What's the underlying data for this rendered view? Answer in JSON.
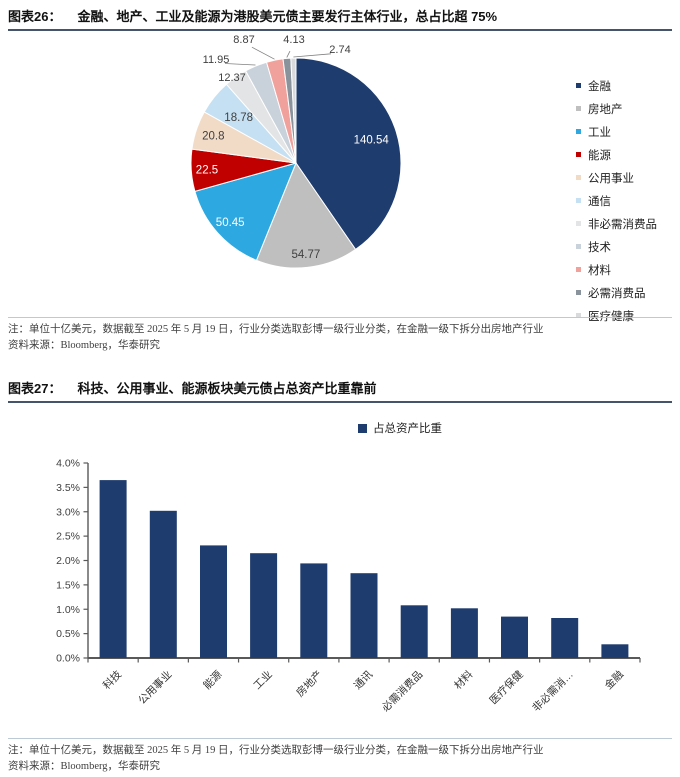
{
  "figure26": {
    "heading_label": "图表26：",
    "heading_title": "金融、地产、工业及能源为港股美元债主要发行主体行业，总占比超 75%",
    "note_line1": "注：单位十亿美元，数据截至 2025 年 5 月 19 日，行业分类选取彭博一级行业分类，在金融一级下拆分出房地产行业",
    "source_line": "资料来源：Bloomberg，华泰研究"
  },
  "figure27": {
    "heading_label": "图表27：",
    "heading_title": "科技、公用事业、能源板块美元债占总资产比重靠前",
    "legend_label": "占总资产比重",
    "note_line1": "注：单位十亿美元，数据截至 2025 年 5 月 19 日，行业分类选取彭博一级行业分类，在金融一级下拆分出房地产行业",
    "source_line": "资料来源：Bloomberg，华泰研究"
  },
  "colors": {
    "accent_navy": "#1E3C6E",
    "header_rule": "#44546A",
    "note_rule": "#BCCAD6",
    "axis_gray": "#595959"
  },
  "chart_data": [
    {
      "type": "pie",
      "title": "金融、地产、工业及能源为港股美元债主要发行主体行业，总占比超 75%",
      "unit": "十亿美元",
      "labels": [
        "金融",
        "房地产",
        "工业",
        "能源",
        "公用事业",
        "通信",
        "非必需消费品",
        "技术",
        "材料",
        "必需消费品",
        "医疗健康"
      ],
      "values": [
        140.54,
        54.77,
        50.45,
        22.5,
        20.8,
        18.78,
        12.37,
        11.95,
        8.87,
        4.13,
        2.74
      ],
      "value_labels": [
        "140.54",
        "54.77",
        "50.45",
        "22.5",
        "20.8",
        "18.78",
        "12.37",
        "11.95",
        "8.87",
        "4.13",
        "2.74"
      ],
      "colors": [
        "#1E3C6E",
        "#BFBFBF",
        "#2DA8E0",
        "#C00000",
        "#F1DBC7",
        "#C5E0F2",
        "#E3E4E6",
        "#C9D1DB",
        "#F1A19B",
        "#8A939B",
        "#D9DADB"
      ],
      "start_angle_deg": -90,
      "direction": "clockwise",
      "legend_position": "right"
    },
    {
      "type": "bar",
      "legend": "占总资产比重",
      "categories": [
        "科技",
        "公用事业",
        "能源",
        "工业",
        "房地产",
        "通讯",
        "必需消费品",
        "材料",
        "医疗保健",
        "非必需消…",
        "金融"
      ],
      "values": [
        3.65,
        3.02,
        2.31,
        2.15,
        1.94,
        1.74,
        1.08,
        1.02,
        0.85,
        0.82,
        0.28
      ],
      "bar_color": "#1E3C6E",
      "ylim": [
        0,
        4.0
      ],
      "ytick_step": 0.5,
      "yticks": [
        "0.0%",
        "0.5%",
        "1.0%",
        "1.5%",
        "2.0%",
        "2.5%",
        "3.0%",
        "3.5%",
        "4.0%"
      ],
      "grid": false,
      "legend_position": "top-center"
    }
  ]
}
